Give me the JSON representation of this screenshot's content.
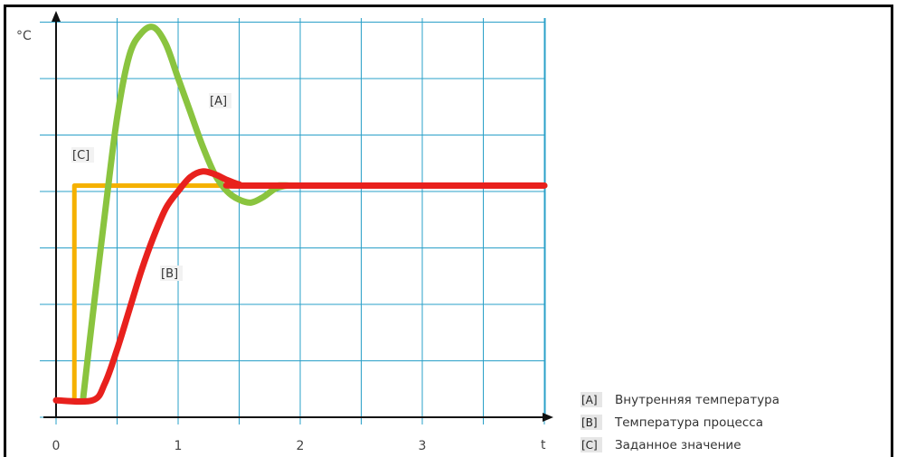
{
  "chart_data": {
    "type": "line",
    "ylabel": "°C",
    "xlabel": "t",
    "x_ticks": [
      "0",
      "1",
      "2",
      "3"
    ],
    "xlim": [
      0,
      4
    ],
    "ylim": [
      0,
      7
    ],
    "grid": true,
    "legend_position": "bottom-right",
    "series": [
      {
        "key": "[A]",
        "name": "Внутренняя температура",
        "color": "#8ac43f",
        "points": [
          [
            0.22,
            0.3
          ],
          [
            0.3,
            1.8
          ],
          [
            0.4,
            3.6
          ],
          [
            0.5,
            5.3
          ],
          [
            0.6,
            6.4
          ],
          [
            0.7,
            6.8
          ],
          [
            0.8,
            6.9
          ],
          [
            0.9,
            6.6
          ],
          [
            1.0,
            6.0
          ],
          [
            1.1,
            5.4
          ],
          [
            1.2,
            4.8
          ],
          [
            1.3,
            4.3
          ],
          [
            1.4,
            4.0
          ],
          [
            1.5,
            3.85
          ],
          [
            1.6,
            3.8
          ],
          [
            1.7,
            3.9
          ],
          [
            1.8,
            4.05
          ],
          [
            1.9,
            4.1
          ],
          [
            2.0,
            4.1
          ],
          [
            4.0,
            4.1
          ]
        ]
      },
      {
        "key": "[B]",
        "name": "Температура процесса",
        "color": "#e8211d",
        "points": [
          [
            0,
            0.3
          ],
          [
            0.3,
            0.3
          ],
          [
            0.4,
            0.6
          ],
          [
            0.5,
            1.2
          ],
          [
            0.6,
            1.9
          ],
          [
            0.7,
            2.6
          ],
          [
            0.8,
            3.2
          ],
          [
            0.9,
            3.7
          ],
          [
            1.0,
            4.0
          ],
          [
            1.1,
            4.25
          ],
          [
            1.2,
            4.35
          ],
          [
            1.3,
            4.3
          ],
          [
            1.4,
            4.2
          ],
          [
            1.5,
            4.12
          ],
          [
            1.6,
            4.1
          ],
          [
            4.0,
            4.1
          ]
        ]
      },
      {
        "key": "[C]",
        "name": "Заданное значение",
        "color": "#f5b100",
        "points": [
          [
            0,
            0.3
          ],
          [
            0.15,
            0.3
          ],
          [
            0.15,
            4.1
          ],
          [
            4.0,
            4.1
          ]
        ]
      }
    ]
  }
}
